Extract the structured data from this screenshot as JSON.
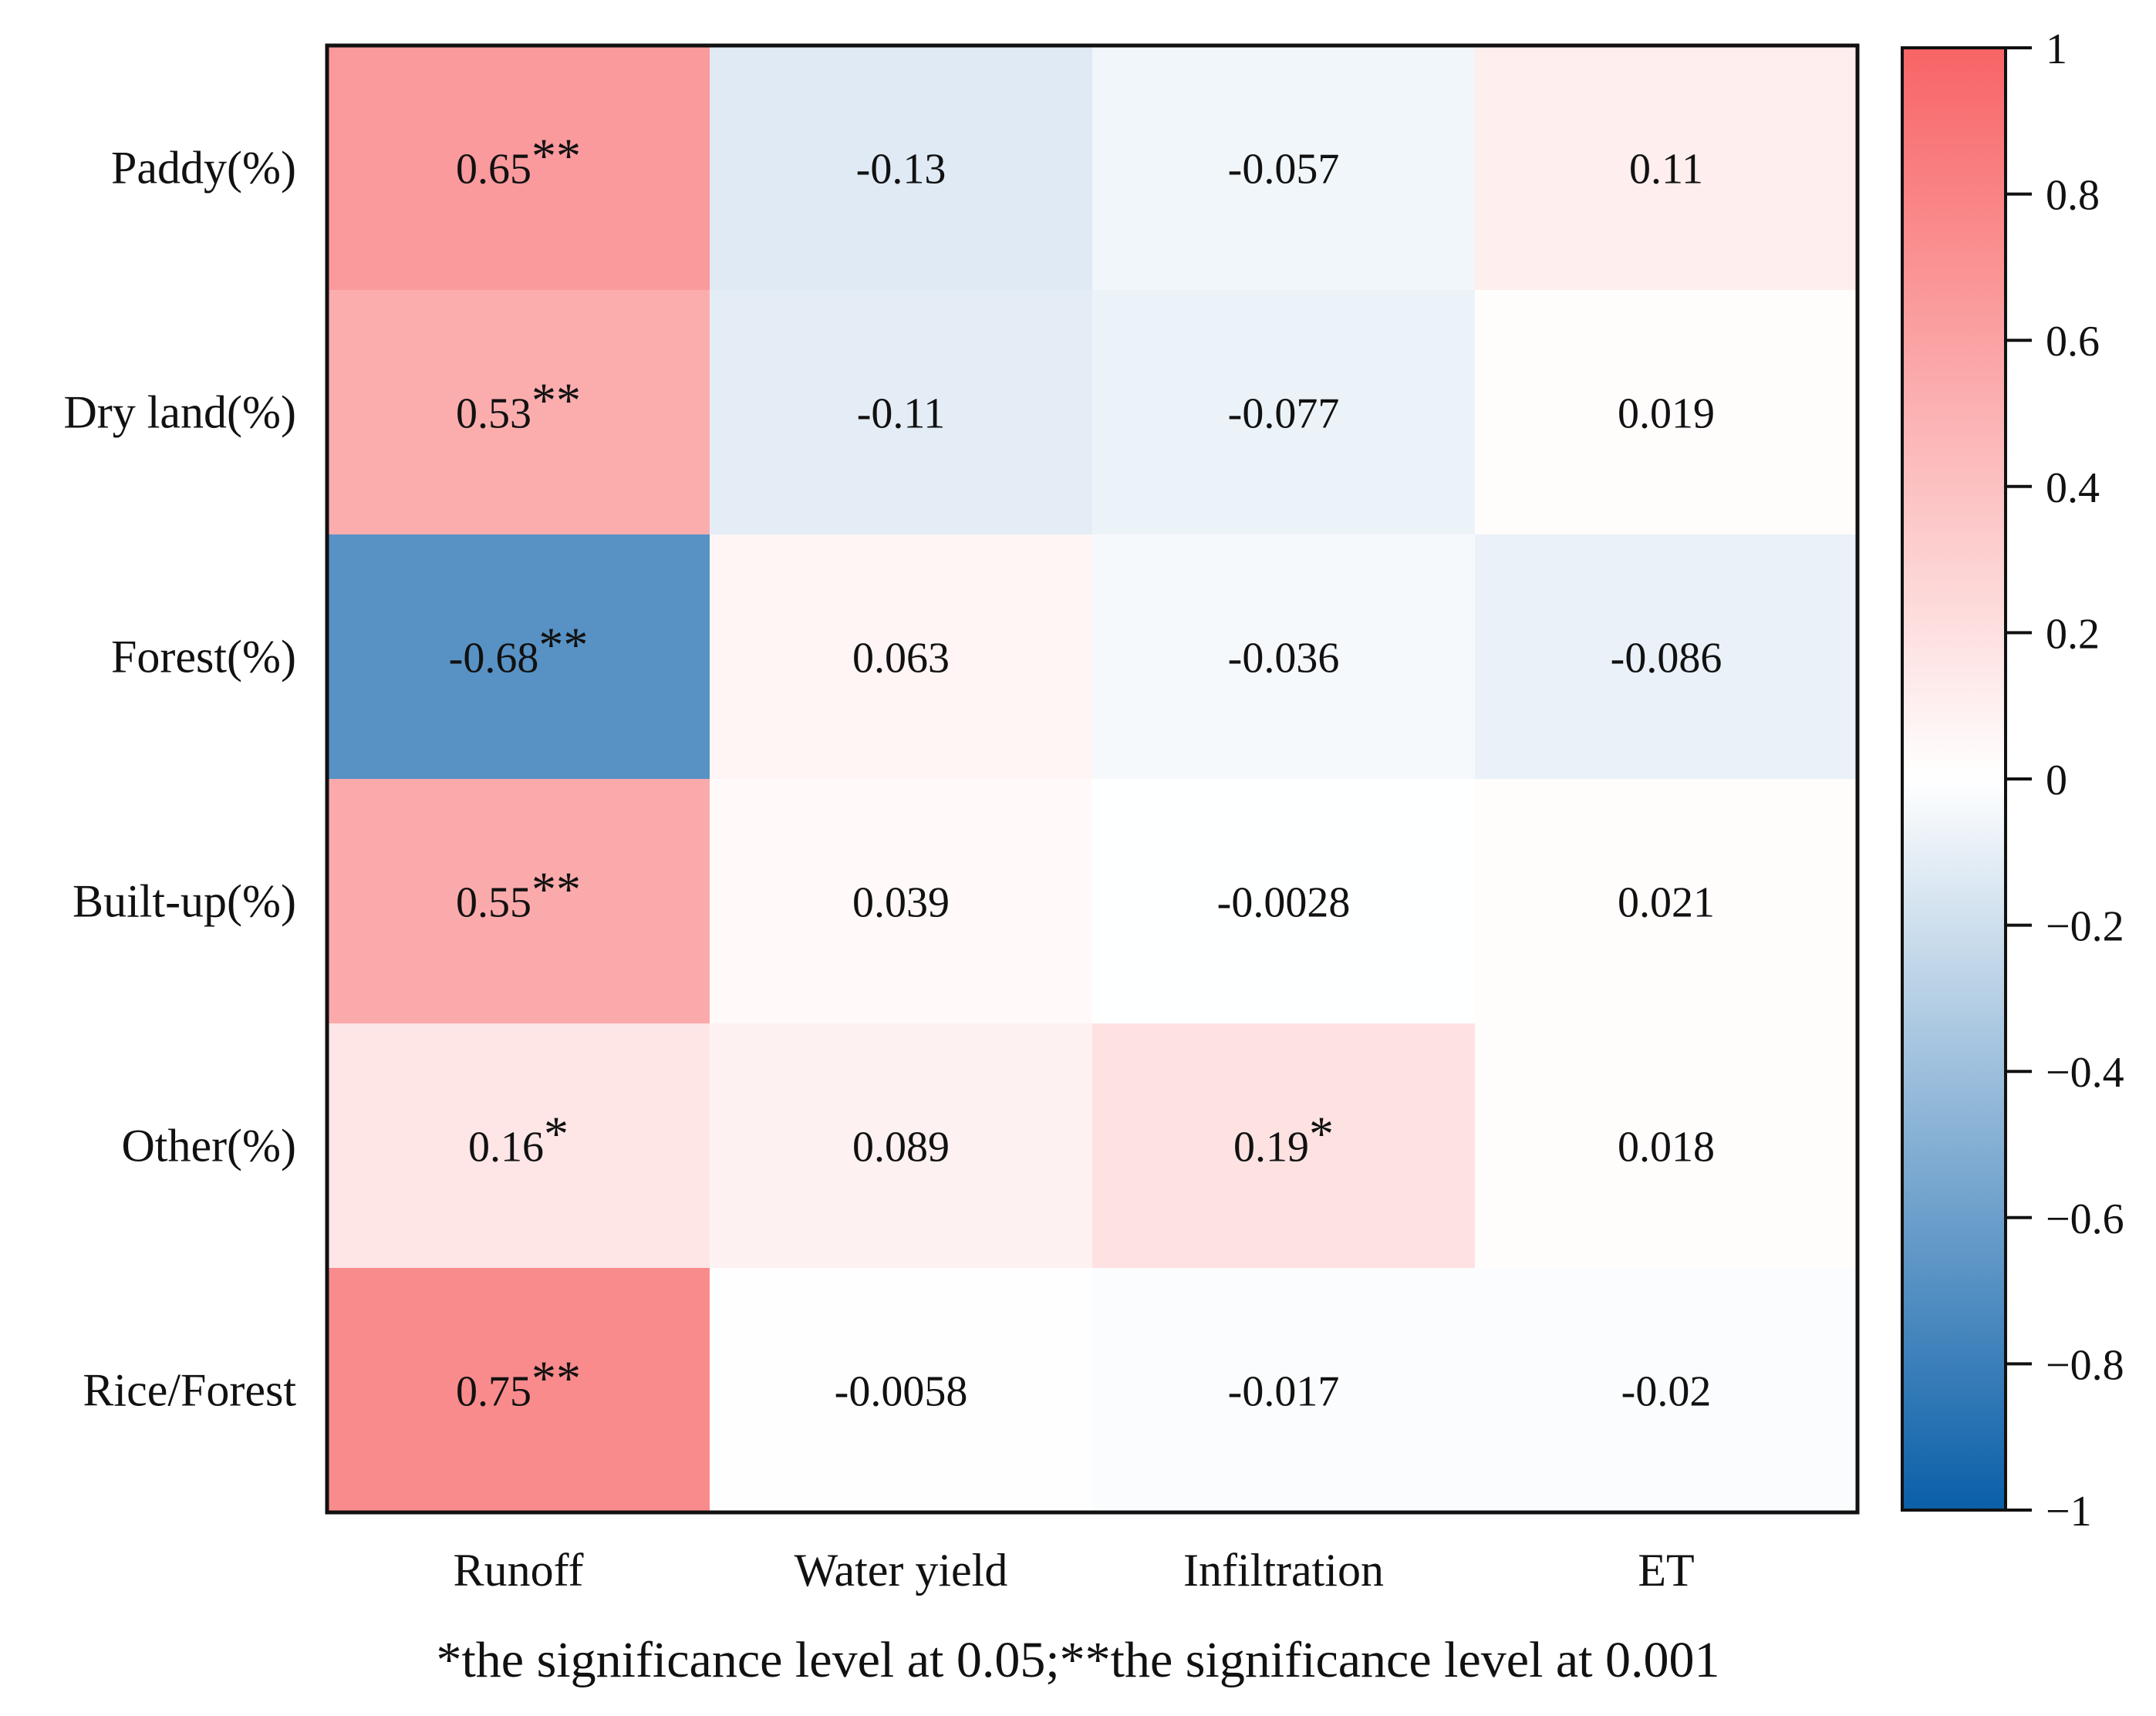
{
  "chart_data": {
    "type": "heatmap",
    "rows": [
      "Paddy(%)",
      "Dry land(%)",
      "Forest(%)",
      "Built-up(%)",
      "Other(%)",
      "Rice/Forest"
    ],
    "columns": [
      "Runoff",
      "Water yield",
      "Infiltration",
      "ET"
    ],
    "values": [
      [
        0.65,
        -0.13,
        -0.057,
        0.11
      ],
      [
        0.53,
        -0.11,
        -0.077,
        0.019
      ],
      [
        -0.68,
        0.063,
        -0.036,
        -0.086
      ],
      [
        0.55,
        0.039,
        -0.0028,
        0.021
      ],
      [
        0.16,
        0.089,
        0.19,
        0.018
      ],
      [
        0.75,
        -0.0058,
        -0.017,
        -0.02
      ]
    ],
    "labels": [
      [
        "0.65",
        "-0.13",
        "-0.057",
        "0.11"
      ],
      [
        "0.53",
        "-0.11",
        "-0.077",
        "0.019"
      ],
      [
        "-0.68",
        "0.063",
        "-0.036",
        "-0.086"
      ],
      [
        "0.55",
        "0.039",
        "-0.0028",
        "0.021"
      ],
      [
        "0.16",
        "0.089",
        "0.19",
        "0.018"
      ],
      [
        "0.75",
        "-0.0058",
        "-0.017",
        "-0.02"
      ]
    ],
    "significance": [
      [
        "**",
        "",
        "",
        ""
      ],
      [
        "**",
        "",
        "",
        ""
      ],
      [
        "**",
        "",
        "",
        ""
      ],
      [
        "**",
        "",
        "",
        ""
      ],
      [
        "*",
        "",
        "*",
        ""
      ],
      [
        "**",
        "",
        "",
        ""
      ]
    ],
    "colorbar": {
      "min": -1,
      "max": 1,
      "ticks": [
        1,
        0.8,
        0.6,
        0.4,
        0.2,
        0,
        -0.2,
        -0.4,
        -0.6,
        -0.8,
        -1
      ],
      "tick_labels": [
        "1",
        "0.8",
        "0.6",
        "0.4",
        "0.2",
        "0",
        "−0.2",
        "−0.4",
        "−0.6",
        "−0.8",
        "−1"
      ],
      "colors": {
        "neg": "#0a5fa8",
        "mid": "#ffffff",
        "pos": "#f86466"
      }
    },
    "footnote": "*the significance level at 0.05;**the significance level at 0.001"
  }
}
